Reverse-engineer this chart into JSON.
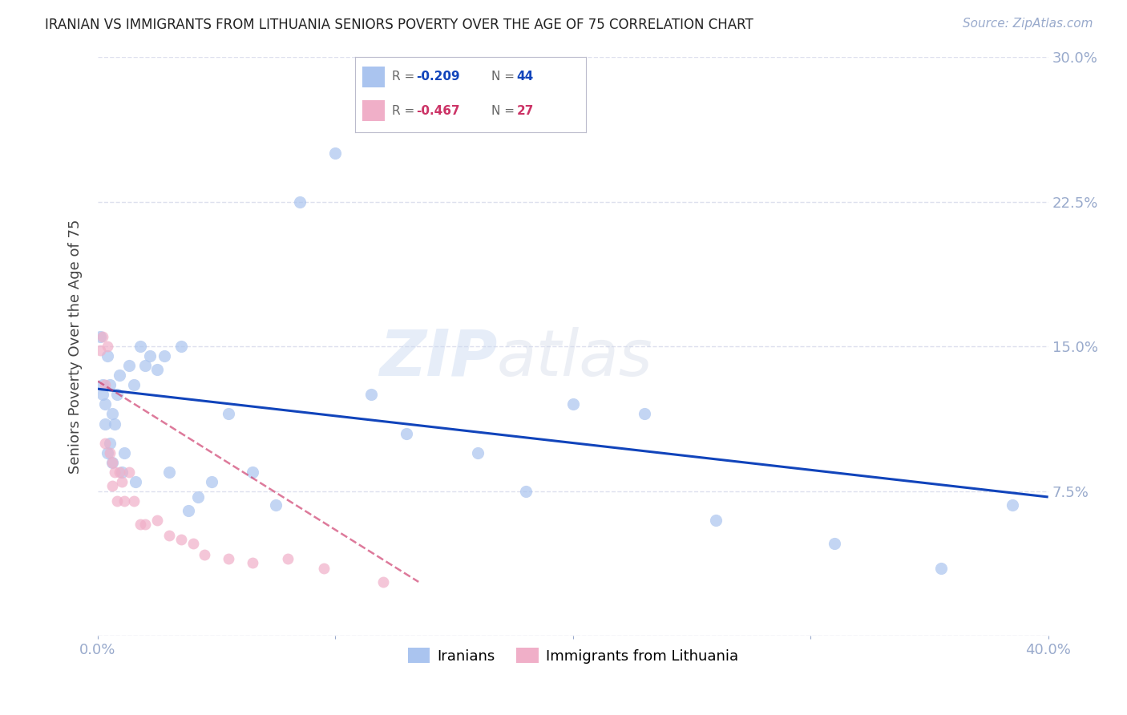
{
  "title": "IRANIAN VS IMMIGRANTS FROM LITHUANIA SENIORS POVERTY OVER THE AGE OF 75 CORRELATION CHART",
  "source": "Source: ZipAtlas.com",
  "xlabel": "",
  "ylabel": "Seniors Poverty Over the Age of 75",
  "xlim": [
    0.0,
    0.4
  ],
  "ylim": [
    0.0,
    0.3
  ],
  "yticks": [
    0.0,
    0.075,
    0.15,
    0.225,
    0.3
  ],
  "ytick_labels": [
    "",
    "7.5%",
    "15.0%",
    "22.5%",
    "30.0%"
  ],
  "xticks": [
    0.0,
    0.1,
    0.2,
    0.3,
    0.4
  ],
  "xtick_labels": [
    "0.0%",
    "",
    "",
    "",
    "40.0%"
  ],
  "background_color": "#ffffff",
  "grid_color": "#dde0ee",
  "title_color": "#222222",
  "axis_color": "#99aacc",
  "iranians_color": "#aac4ef",
  "lithuania_color": "#f0afc8",
  "iranians_line_color": "#1144bb",
  "lithuania_line_color": "#cc3366",
  "watermark_zip": "ZIP",
  "watermark_atlas": "atlas",
  "legend_r_iranian": "R = -0.209",
  "legend_n_iranian": "N = 44",
  "legend_r_lithuania": "R = -0.467",
  "legend_n_lithuania": "N = 27",
  "iranians_x": [
    0.001,
    0.002,
    0.002,
    0.003,
    0.003,
    0.004,
    0.004,
    0.005,
    0.005,
    0.006,
    0.006,
    0.007,
    0.008,
    0.009,
    0.01,
    0.011,
    0.013,
    0.015,
    0.016,
    0.018,
    0.02,
    0.022,
    0.025,
    0.028,
    0.03,
    0.035,
    0.038,
    0.042,
    0.048,
    0.055,
    0.065,
    0.075,
    0.085,
    0.1,
    0.115,
    0.13,
    0.16,
    0.18,
    0.2,
    0.23,
    0.26,
    0.31,
    0.355,
    0.385
  ],
  "iranians_y": [
    0.155,
    0.13,
    0.125,
    0.12,
    0.11,
    0.145,
    0.095,
    0.13,
    0.1,
    0.115,
    0.09,
    0.11,
    0.125,
    0.135,
    0.085,
    0.095,
    0.14,
    0.13,
    0.08,
    0.15,
    0.14,
    0.145,
    0.138,
    0.145,
    0.085,
    0.15,
    0.065,
    0.072,
    0.08,
    0.115,
    0.085,
    0.068,
    0.225,
    0.25,
    0.125,
    0.105,
    0.095,
    0.075,
    0.12,
    0.115,
    0.06,
    0.048,
    0.035,
    0.068
  ],
  "lithuania_x": [
    0.001,
    0.002,
    0.003,
    0.003,
    0.004,
    0.005,
    0.006,
    0.006,
    0.007,
    0.008,
    0.009,
    0.01,
    0.011,
    0.013,
    0.015,
    0.018,
    0.02,
    0.025,
    0.03,
    0.035,
    0.04,
    0.045,
    0.055,
    0.065,
    0.08,
    0.095,
    0.12
  ],
  "lithuania_y": [
    0.148,
    0.155,
    0.13,
    0.1,
    0.15,
    0.095,
    0.09,
    0.078,
    0.085,
    0.07,
    0.085,
    0.08,
    0.07,
    0.085,
    0.07,
    0.058,
    0.058,
    0.06,
    0.052,
    0.05,
    0.048,
    0.042,
    0.04,
    0.038,
    0.04,
    0.035,
    0.028
  ],
  "iran_line_x0": 0.0,
  "iran_line_x1": 0.4,
  "iran_line_y0": 0.128,
  "iran_line_y1": 0.072,
  "lith_line_x0": 0.0,
  "lith_line_x1": 0.135,
  "lith_line_y0": 0.132,
  "lith_line_y1": 0.028
}
